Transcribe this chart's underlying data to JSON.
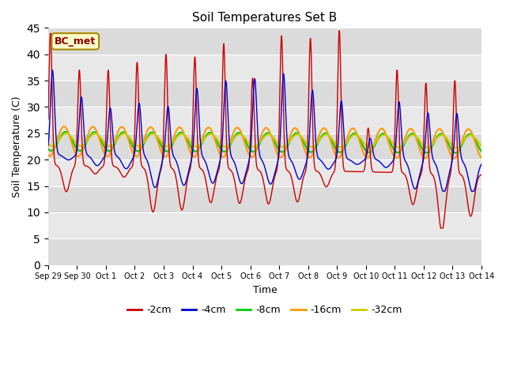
{
  "title": "Soil Temperatures Set B",
  "xlabel": "Time",
  "ylabel": "Soil Temperature (C)",
  "ylim": [
    0,
    45
  ],
  "yticks": [
    0,
    5,
    10,
    15,
    20,
    25,
    30,
    35,
    40,
    45
  ],
  "legend_labels": [
    "-2cm",
    "-4cm",
    "-8cm",
    "-16cm",
    "-32cm"
  ],
  "legend_colors": [
    "#cc0000",
    "#0000cc",
    "#00cc00",
    "#ff9900",
    "#cccc00"
  ],
  "annotation_text": "BC_met",
  "annotation_bg": "#ffffcc",
  "annotation_border": "#aa8800",
  "plot_bg": "#e8e8e8",
  "tick_labels": [
    "Sep 29",
    "Sep 30",
    "Oct 1",
    "Oct 2",
    "Oct 3",
    "Oct 4",
    "Oct 5",
    "Oct 6",
    "Oct 7",
    "Oct 8",
    "Oct 9",
    "Oct 10",
    "Oct 11",
    "Oct 12",
    "Oct 13",
    "Oct 14"
  ],
  "total_days": 15,
  "peak_times_2cm": [
    0.08,
    1.08,
    2.08,
    3.08,
    4.08,
    5.08,
    6.08,
    7.08,
    8.08,
    9.08,
    10.08,
    11.08,
    12.08,
    13.08,
    14.08
  ],
  "peak_heights_2cm": [
    44,
    37,
    37,
    38.5,
    40,
    39.5,
    42,
    35.5,
    43.5,
    43,
    44.5,
    26,
    37,
    34.5,
    35
  ],
  "trough_depths_2cm": [
    14,
    17.5,
    17,
    10.5,
    11,
    12.5,
    12.5,
    12.5,
    13,
    16,
    19,
    19,
    13,
    8,
    11
  ],
  "peak_times_4cm": [
    0.15,
    1.15,
    2.15,
    3.15,
    4.15,
    5.15,
    6.15,
    7.15,
    8.15,
    9.15,
    10.15,
    11.15,
    12.15,
    13.15,
    14.15
  ],
  "peak_heights_4cm": [
    37,
    32,
    30,
    31,
    30.5,
    34,
    35.5,
    36,
    37,
    34,
    32,
    25,
    32,
    30,
    30
  ],
  "trough_depths_4cm": [
    20,
    19,
    18.5,
    15,
    15.5,
    16,
    16,
    16,
    17,
    19,
    20,
    19.5,
    15.5,
    15,
    15
  ],
  "base_8cm": 23.5,
  "amp_8cm": 1.8,
  "phase_8cm": 0.35,
  "base_16cm": 23.5,
  "amp_16cm": 2.8,
  "phase_16cm": 0.3,
  "base_32cm": 23.8,
  "amp_32cm": 1.2,
  "phase_32cm": 0.38,
  "cooling_trend": -0.12,
  "n_points": 2000
}
